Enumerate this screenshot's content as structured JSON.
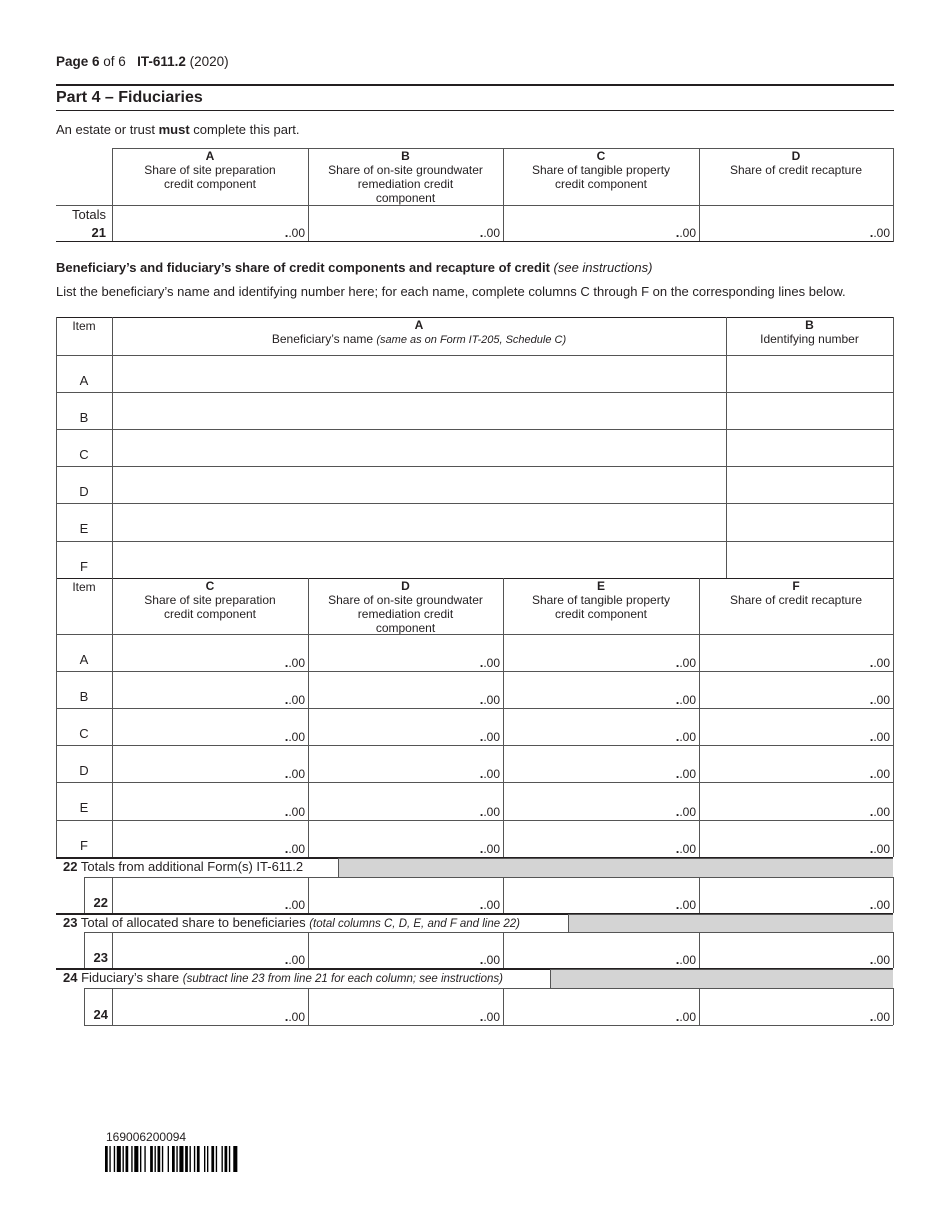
{
  "header": {
    "page_bold": "Page 6",
    "page_rest": " of 6",
    "form_id": "IT-611.2",
    "year": "(2020)"
  },
  "part_title": "Part 4 – Fiduciaries",
  "intro": {
    "pre": "An estate or trust ",
    "bold": "must",
    "post": " complete this part."
  },
  "totals_table": {
    "columns": [
      {
        "letter": "A",
        "text": "Share of site preparation credit component"
      },
      {
        "letter": "B",
        "text": "Share of on-site groundwater remediation credit component"
      },
      {
        "letter": "C",
        "text": "Share of tangible property credit component"
      },
      {
        "letter": "D",
        "text": "Share of credit recapture"
      }
    ],
    "row_label": "Totals",
    "line": "21",
    "values": [
      ".00",
      ".00",
      ".00",
      ".00"
    ]
  },
  "section_heading": {
    "bold": "Beneficiary’s and fiduciary’s share of credit components and recapture of credit ",
    "italic": "(see instructions)"
  },
  "section_instructions": "List the beneficiary’s name and identifying number here; for each name, complete columns C through F on the corresponding lines below.",
  "beneficiary_table": {
    "item_header": "Item",
    "col_a_letter": "A",
    "col_a_text": "Beneficiary’s name ",
    "col_a_italic": "(same as on Form IT-205, Schedule C)",
    "col_b_letter": "B",
    "col_b_text": "Identifying number",
    "items": [
      "A",
      "B",
      "C",
      "D",
      "E",
      "F"
    ]
  },
  "share_table": {
    "item_header": "Item",
    "columns": [
      {
        "letter": "C",
        "text": "Share of site preparation credit component"
      },
      {
        "letter": "D",
        "text": "Share of on-site groundwater remediation credit component"
      },
      {
        "letter": "E",
        "text": "Share of tangible property credit component"
      },
      {
        "letter": "F",
        "text": "Share of credit recapture"
      }
    ],
    "items": [
      "A",
      "B",
      "C",
      "D",
      "E",
      "F"
    ],
    "value": ".00"
  },
  "lines": [
    {
      "num": "22",
      "text": "Totals from additional Form(s) IT-611.2",
      "italic": "",
      "values": [
        ".00",
        ".00",
        ".00",
        ".00"
      ]
    },
    {
      "num": "23",
      "text": "Total of allocated share to beneficiaries ",
      "italic": "(total columns C, D, E, and F and line 22)",
      "values": [
        ".00",
        ".00",
        ".00",
        ".00"
      ]
    },
    {
      "num": "24",
      "text": "Fiduciary’s share ",
      "italic": "(subtract line 23 from line 21 for each column; see instructions)",
      "values": [
        ".00",
        ".00",
        ".00",
        ".00"
      ]
    }
  ],
  "barcode": {
    "number": "169006200094"
  }
}
